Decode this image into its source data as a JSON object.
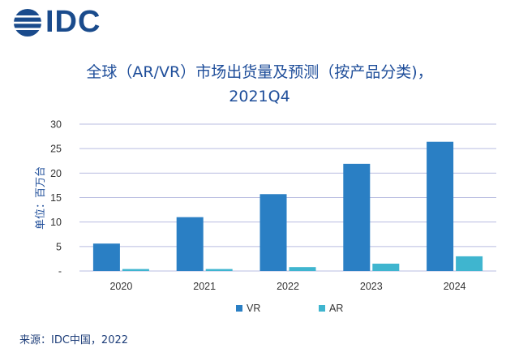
{
  "brand": {
    "logo_text": "IDC",
    "colors": {
      "logo": "#1a4b8c",
      "title": "#1f4e9a",
      "grid": "#b8bce0",
      "axis_text": "#333333"
    }
  },
  "title": {
    "line1": "全球（AR/VR）市场出货量及预测（按产品分类)，",
    "line2": "2021Q4"
  },
  "source": "来源：IDC中国，2022",
  "chart_data": {
    "type": "bar",
    "title": "全球（AR/VR）市场出货量及预测（按产品分类)， 2021Q4",
    "ylabel": "单位：百万台",
    "xlabel": "",
    "categories": [
      "2020",
      "2021",
      "2022",
      "2023",
      "2024"
    ],
    "ylim": [
      0,
      30
    ],
    "yticks": [
      0,
      5,
      10,
      15,
      20,
      25,
      30
    ],
    "ytick_labels": [
      "-",
      "5",
      "10",
      "15",
      "20",
      "25",
      "30"
    ],
    "grid": true,
    "legend_position": "bottom",
    "series": [
      {
        "name": "VR",
        "color": "#2a7fc4",
        "values": [
          5.6,
          11.0,
          15.7,
          21.9,
          26.4
        ]
      },
      {
        "name": "AR",
        "color": "#3fb5cf",
        "values": [
          0.4,
          0.4,
          0.8,
          1.5,
          3.0
        ]
      }
    ]
  }
}
